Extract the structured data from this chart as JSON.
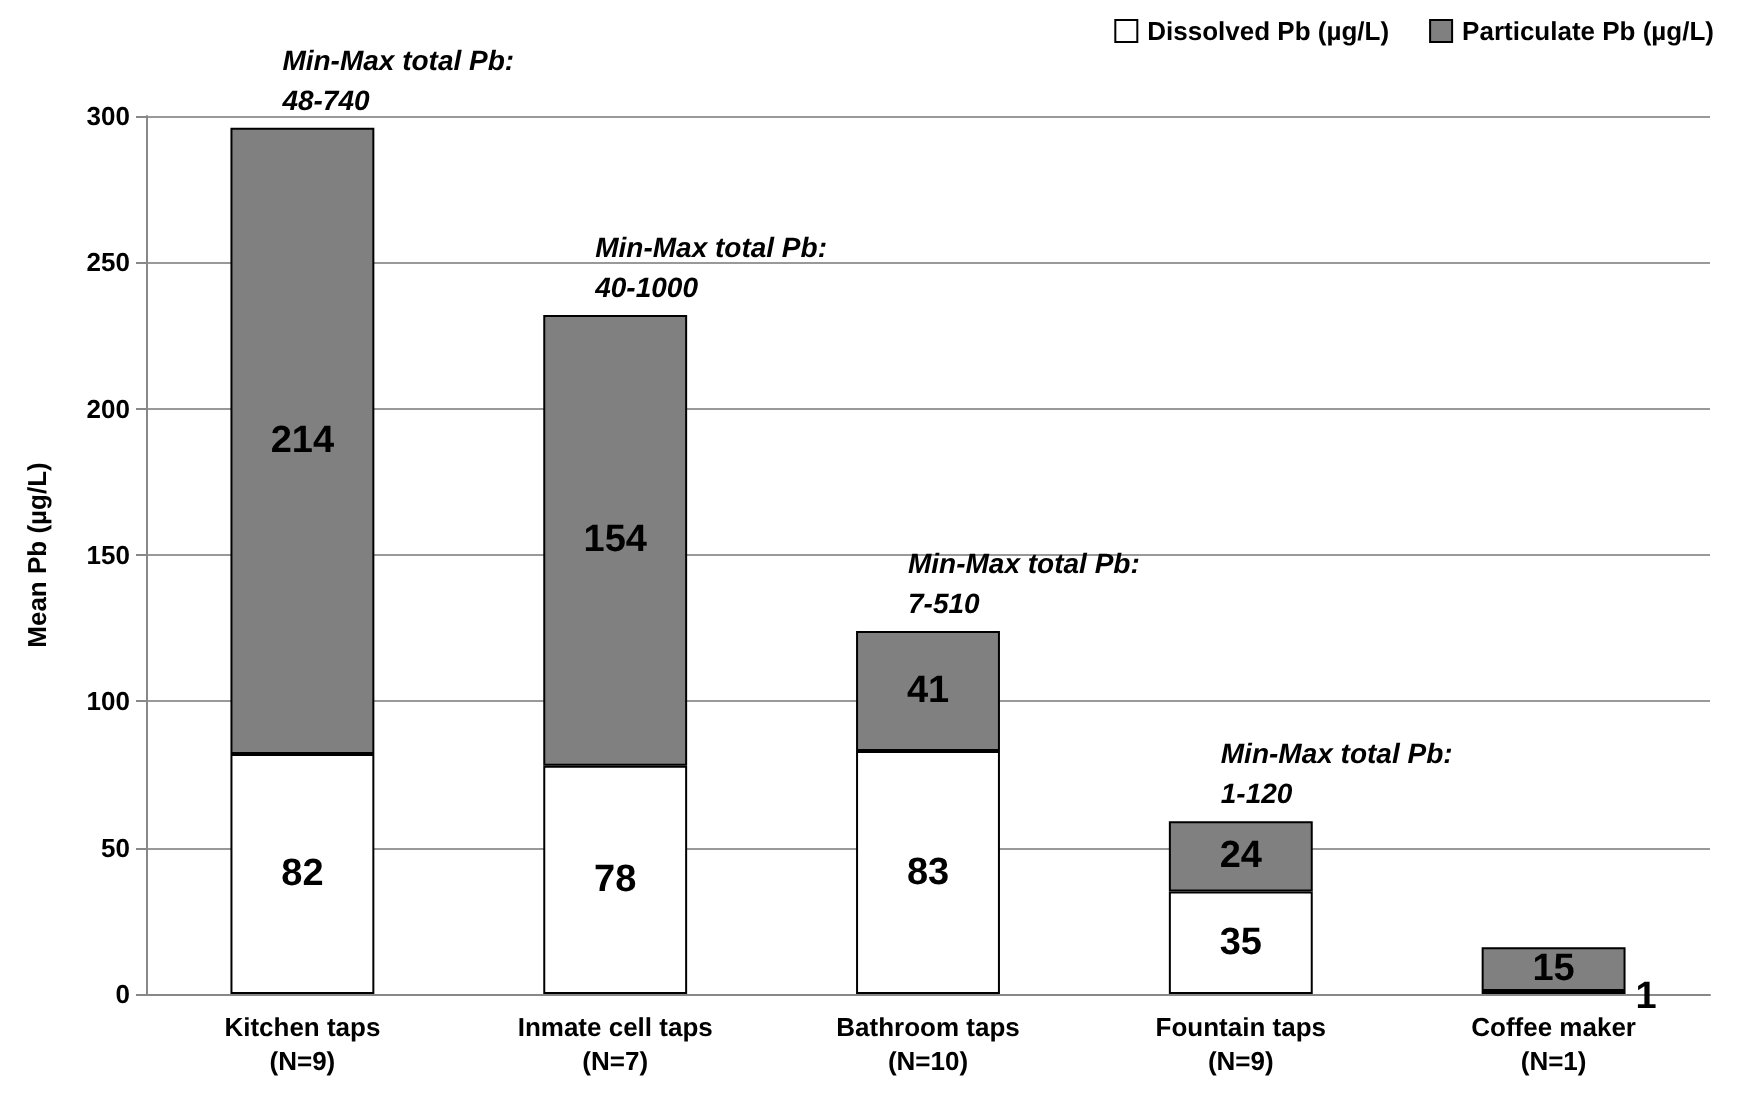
{
  "chart_data": {
    "type": "bar",
    "stacked": true,
    "ylabel": "Mean Pb (µg/L)",
    "categories": [
      "Kitchen taps\n(N=9)",
      "Inmate cell taps\n(N=7)",
      "Bathroom taps\n(N=10)",
      "Fountain taps\n(N=9)",
      "Coffee maker\n(N=1)"
    ],
    "series": [
      {
        "name": "Dissolved Pb (µg/L)",
        "color": "#ffffff",
        "values": [
          82,
          78,
          83,
          35,
          1
        ]
      },
      {
        "name": "Particulate Pb (µg/L)",
        "color": "#808080",
        "values": [
          214,
          154,
          41,
          24,
          15
        ]
      }
    ],
    "ylim": [
      0,
      300
    ],
    "yticks": [
      0,
      50,
      100,
      150,
      200,
      250,
      300
    ],
    "grid": "y",
    "legend": "top right",
    "data_labels": true,
    "annotations": [
      "Min-Max total Pb:\n48-740",
      "Min-Max total Pb:\n40-1000",
      "Min-Max total Pb:\n7-510",
      "Min-Max total Pb:\n1-120"
    ]
  }
}
